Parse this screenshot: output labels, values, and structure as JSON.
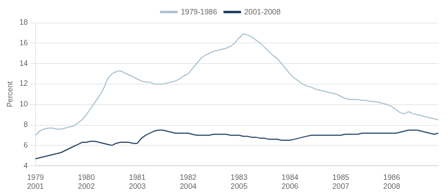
{
  "chart_data": {
    "type": "line",
    "ylabel": "Percent",
    "categories": [
      [
        "1979",
        "2001"
      ],
      null,
      null,
      null,
      null,
      null,
      null,
      null,
      null,
      null,
      null,
      null,
      [
        "1980",
        "2002"
      ],
      null,
      null,
      null,
      null,
      null,
      null,
      null,
      null,
      null,
      null,
      null,
      [
        "1981",
        "2003"
      ],
      null,
      null,
      null,
      null,
      null,
      null,
      null,
      null,
      null,
      null,
      null,
      [
        "1982",
        "2004"
      ],
      null,
      null,
      null,
      null,
      null,
      null,
      null,
      null,
      null,
      null,
      null,
      [
        "1983",
        "2005"
      ],
      null,
      null,
      null,
      null,
      null,
      null,
      null,
      null,
      null,
      null,
      null,
      [
        "1984",
        "2006"
      ],
      null,
      null,
      null,
      null,
      null,
      null,
      null,
      null,
      null,
      null,
      null,
      [
        "1985",
        "2007"
      ],
      null,
      null,
      null,
      null,
      null,
      null,
      null,
      null,
      null,
      null,
      null,
      [
        "1986",
        "2008"
      ],
      null,
      null,
      null,
      null,
      null,
      null,
      null,
      null,
      null,
      null,
      null
    ],
    "series": [
      {
        "name": "1979-1986",
        "color": "#a8c0d0",
        "values": [
          7.0,
          7.4,
          7.6,
          7.7,
          7.7,
          7.6,
          7.6,
          7.7,
          7.8,
          7.9,
          8.2,
          8.5,
          9.0,
          9.6,
          10.2,
          10.8,
          11.5,
          12.5,
          13.0,
          13.2,
          13.3,
          13.1,
          12.9,
          12.7,
          12.5,
          12.3,
          12.2,
          12.2,
          12.0,
          12.0,
          12.0,
          12.1,
          12.2,
          12.3,
          12.5,
          12.8,
          13.0,
          13.5,
          14.0,
          14.5,
          14.8,
          15.0,
          15.2,
          15.3,
          15.4,
          15.5,
          15.7,
          16.0,
          16.5,
          16.9,
          16.8,
          16.6,
          16.3,
          16.0,
          15.6,
          15.2,
          14.8,
          14.5,
          14.0,
          13.5,
          13.0,
          12.6,
          12.3,
          12.0,
          11.8,
          11.7,
          11.5,
          11.4,
          11.3,
          11.2,
          11.1,
          11.0,
          10.8,
          10.6,
          10.5,
          10.5,
          10.5,
          10.4,
          10.4,
          10.3,
          10.3,
          10.2,
          10.1,
          10.0,
          9.8,
          9.5,
          9.2,
          9.1,
          9.3,
          9.1,
          9.0,
          8.9,
          8.8,
          8.7,
          8.6,
          8.5
        ]
      },
      {
        "name": "2001-2008",
        "color": "#1a3a5c",
        "values": [
          4.7,
          4.8,
          4.9,
          5.0,
          5.1,
          5.2,
          5.3,
          5.5,
          5.7,
          5.9,
          6.1,
          6.3,
          6.3,
          6.4,
          6.4,
          6.3,
          6.2,
          6.1,
          6.0,
          6.2,
          6.3,
          6.3,
          6.3,
          6.2,
          6.2,
          6.7,
          7.0,
          7.2,
          7.4,
          7.5,
          7.5,
          7.4,
          7.3,
          7.2,
          7.2,
          7.2,
          7.2,
          7.1,
          7.0,
          7.0,
          7.0,
          7.0,
          7.1,
          7.1,
          7.1,
          7.1,
          7.0,
          7.0,
          7.0,
          6.9,
          6.9,
          6.8,
          6.8,
          6.7,
          6.7,
          6.6,
          6.6,
          6.6,
          6.5,
          6.5,
          6.5,
          6.6,
          6.7,
          6.8,
          6.9,
          7.0,
          7.0,
          7.0,
          7.0,
          7.0,
          7.0,
          7.0,
          7.0,
          7.1,
          7.1,
          7.1,
          7.1,
          7.2,
          7.2,
          7.2,
          7.2,
          7.2,
          7.2,
          7.2,
          7.2,
          7.2,
          7.3,
          7.4,
          7.5,
          7.5,
          7.5,
          7.4,
          7.3,
          7.2,
          7.1,
          7.2
        ]
      }
    ],
    "ylim": [
      4,
      18
    ],
    "yticks": [
      4,
      6,
      8,
      10,
      12,
      14,
      16,
      18
    ],
    "grid": "y",
    "legend": "top"
  }
}
